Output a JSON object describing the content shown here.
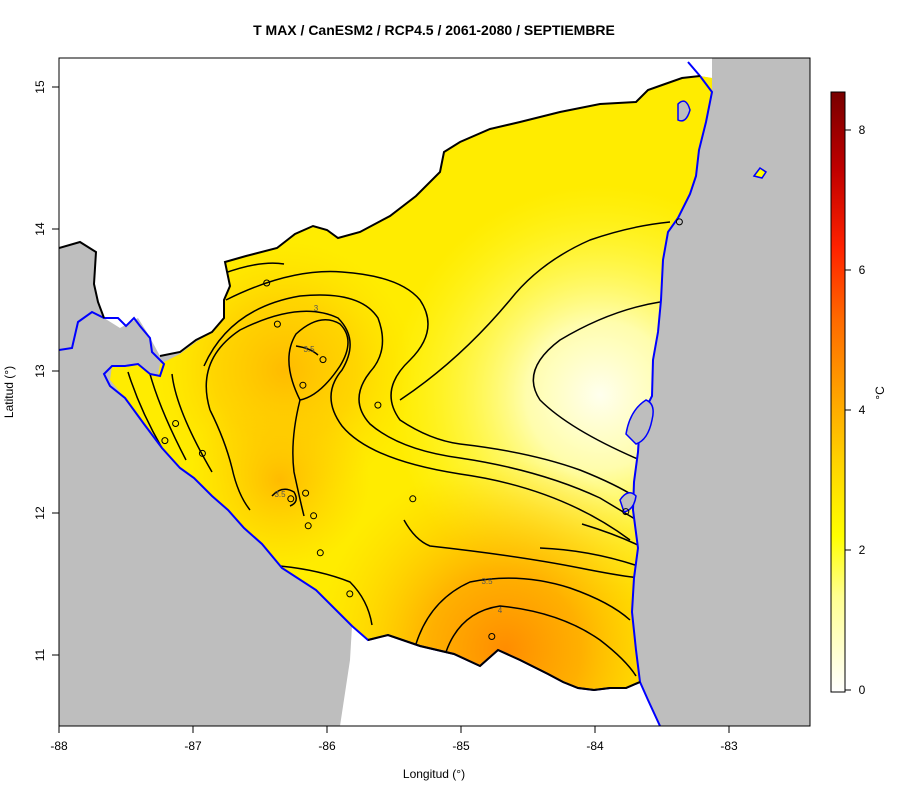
{
  "title": "T MAX / CanESM2 / RCP4.5 / 2061-2080 / SEPTIEMBRE",
  "axes": {
    "xlabel": "Longitud (°)",
    "ylabel": "Latitud (°)",
    "xticks": [
      "-88",
      "-87",
      "-86",
      "-85",
      "-84",
      "-83"
    ],
    "yticks": [
      "11",
      "12",
      "13",
      "14",
      "15"
    ],
    "xlim": [
      -88,
      -82.4
    ],
    "ylim": [
      10.5,
      15.2
    ]
  },
  "colorbar": {
    "unit": "°C",
    "ticks": [
      "0",
      "2",
      "4",
      "6",
      "8"
    ],
    "range": [
      -0.2,
      8.6
    ],
    "colors": [
      "#ffffff",
      "#ffffb0",
      "#ffff00",
      "#ffd800",
      "#ffa000",
      "#ff6a00",
      "#ff2200",
      "#b80000",
      "#7a0000"
    ]
  },
  "colors": {
    "ocean": "#bebebe",
    "neighbor_land": "#ffffff",
    "coastline": "#0000ff",
    "borders": "#000000",
    "contours": "#000000"
  },
  "contour_labels": [
    "3",
    "3.5",
    "3.5",
    "3.5",
    "4"
  ],
  "chart_data": {
    "type": "heatmap",
    "title": "T MAX / CanESM2 / RCP4.5 / 2061-2080 / SEPTIEMBRE",
    "xlabel": "Longitud (°)",
    "ylabel": "Latitud (°)",
    "xlim": [
      -88,
      -82.4
    ],
    "ylim": [
      10.5,
      15.2
    ],
    "value_range": [
      0,
      8.6
    ],
    "contour_levels": [
      1,
      1.5,
      2,
      2.5,
      3,
      3.5,
      4
    ],
    "field_peaks": [
      {
        "lon": -83.9,
        "lat": 12.8,
        "value": 1.0
      },
      {
        "lon": -86.15,
        "lat": 13.1,
        "value": 3.3
      },
      {
        "lon": -86.3,
        "lat": 12.1,
        "value": 3.4
      },
      {
        "lon": -84.75,
        "lat": 11.1,
        "value": 4.3
      }
    ],
    "stations": [
      {
        "lon": -86.45,
        "lat": 13.62
      },
      {
        "lon": -86.37,
        "lat": 13.33
      },
      {
        "lon": -86.03,
        "lat": 13.08
      },
      {
        "lon": -86.18,
        "lat": 12.9
      },
      {
        "lon": -85.62,
        "lat": 12.76
      },
      {
        "lon": -87.13,
        "lat": 12.63
      },
      {
        "lon": -86.93,
        "lat": 12.42
      },
      {
        "lon": -87.21,
        "lat": 12.51
      },
      {
        "lon": -86.16,
        "lat": 12.14
      },
      {
        "lon": -86.27,
        "lat": 12.1
      },
      {
        "lon": -85.36,
        "lat": 12.1
      },
      {
        "lon": -86.1,
        "lat": 11.98
      },
      {
        "lon": -86.14,
        "lat": 11.91
      },
      {
        "lon": -86.05,
        "lat": 11.72
      },
      {
        "lon": -85.83,
        "lat": 11.43
      },
      {
        "lon": -84.77,
        "lat": 11.13
      },
      {
        "lon": -83.77,
        "lat": 12.01
      },
      {
        "lon": -83.37,
        "lat": 14.05
      }
    ]
  }
}
